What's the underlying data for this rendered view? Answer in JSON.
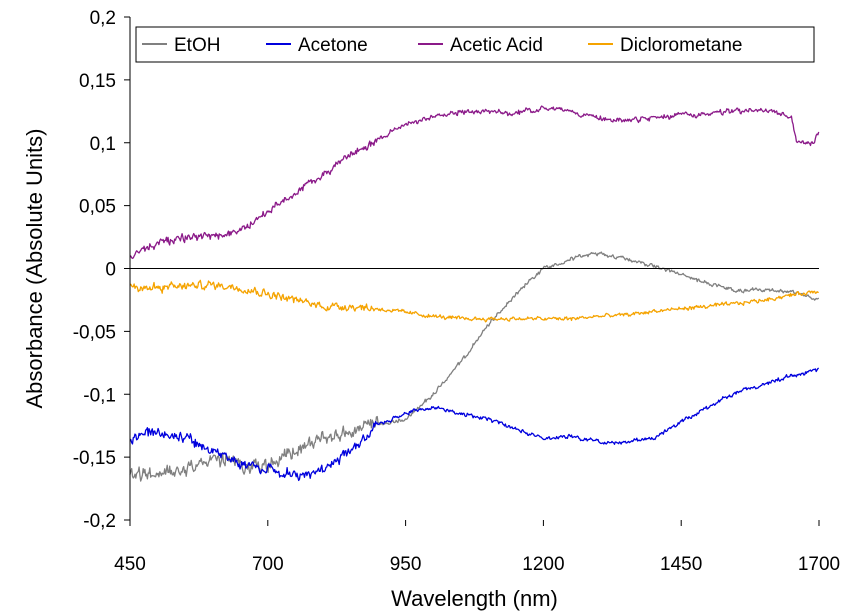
{
  "chart_data": {
    "type": "line",
    "xlabel": "Wavelength (nm)",
    "ylabel": "Absorbance (Absolute Units)",
    "xlim": [
      450,
      1700
    ],
    "ylim": [
      -0.2,
      0.2
    ],
    "x_ticks": [
      450,
      700,
      950,
      1200,
      1450,
      1700
    ],
    "x_tick_labels": [
      "450",
      "700",
      "950",
      "1200",
      "1450",
      "1700"
    ],
    "y_ticks": [
      -0.2,
      -0.15,
      -0.1,
      -0.05,
      0,
      0.05,
      0.1,
      0.15,
      0.2
    ],
    "y_tick_labels": [
      "-0,2",
      "-0,15",
      "-0,1",
      "-0,05",
      "0",
      "0,05",
      "0,1",
      "0,15",
      "0,2"
    ],
    "grid": false,
    "legend_position": "top",
    "series": [
      {
        "name": "EtOH",
        "color": "#808080",
        "noise_below_900": 0.007,
        "noise_above_900": 0.002,
        "points": [
          [
            450,
            -0.165
          ],
          [
            500,
            -0.163
          ],
          [
            550,
            -0.158
          ],
          [
            600,
            -0.152
          ],
          [
            650,
            -0.155
          ],
          [
            700,
            -0.158
          ],
          [
            750,
            -0.145
          ],
          [
            800,
            -0.135
          ],
          [
            850,
            -0.13
          ],
          [
            900,
            -0.125
          ],
          [
            950,
            -0.12
          ],
          [
            1000,
            -0.1
          ],
          [
            1050,
            -0.075
          ],
          [
            1100,
            -0.045
          ],
          [
            1150,
            -0.02
          ],
          [
            1200,
            0.0
          ],
          [
            1250,
            0.008
          ],
          [
            1300,
            0.012
          ],
          [
            1350,
            0.008
          ],
          [
            1400,
            0.002
          ],
          [
            1450,
            -0.005
          ],
          [
            1500,
            -0.012
          ],
          [
            1550,
            -0.018
          ],
          [
            1600,
            -0.017
          ],
          [
            1650,
            -0.018
          ],
          [
            1700,
            -0.025
          ]
        ]
      },
      {
        "name": "Acetone",
        "color": "#0000dd",
        "noise_below_900": 0.005,
        "noise_above_900": 0.002,
        "points": [
          [
            450,
            -0.135
          ],
          [
            500,
            -0.13
          ],
          [
            550,
            -0.135
          ],
          [
            600,
            -0.145
          ],
          [
            650,
            -0.155
          ],
          [
            700,
            -0.16
          ],
          [
            750,
            -0.165
          ],
          [
            800,
            -0.16
          ],
          [
            850,
            -0.145
          ],
          [
            900,
            -0.125
          ],
          [
            950,
            -0.115
          ],
          [
            1000,
            -0.11
          ],
          [
            1050,
            -0.115
          ],
          [
            1100,
            -0.12
          ],
          [
            1150,
            -0.128
          ],
          [
            1200,
            -0.135
          ],
          [
            1250,
            -0.133
          ],
          [
            1300,
            -0.138
          ],
          [
            1350,
            -0.138
          ],
          [
            1400,
            -0.135
          ],
          [
            1450,
            -0.122
          ],
          [
            1500,
            -0.11
          ],
          [
            1550,
            -0.098
          ],
          [
            1600,
            -0.092
          ],
          [
            1650,
            -0.085
          ],
          [
            1700,
            -0.08
          ]
        ]
      },
      {
        "name": "Acetic Acid",
        "color": "#8b1a89",
        "noise_below_900": 0.004,
        "noise_above_900": 0.0025,
        "points": [
          [
            450,
            0.01
          ],
          [
            500,
            0.02
          ],
          [
            550,
            0.025
          ],
          [
            600,
            0.025
          ],
          [
            650,
            0.03
          ],
          [
            700,
            0.045
          ],
          [
            750,
            0.06
          ],
          [
            800,
            0.075
          ],
          [
            850,
            0.09
          ],
          [
            900,
            0.103
          ],
          [
            950,
            0.115
          ],
          [
            1000,
            0.12
          ],
          [
            1050,
            0.125
          ],
          [
            1100,
            0.125
          ],
          [
            1150,
            0.123
          ],
          [
            1200,
            0.128
          ],
          [
            1250,
            0.125
          ],
          [
            1300,
            0.12
          ],
          [
            1350,
            0.117
          ],
          [
            1400,
            0.12
          ],
          [
            1450,
            0.122
          ],
          [
            1500,
            0.123
          ],
          [
            1550,
            0.125
          ],
          [
            1600,
            0.126
          ],
          [
            1650,
            0.12
          ],
          [
            1660,
            0.1
          ],
          [
            1690,
            0.1
          ],
          [
            1700,
            0.11
          ]
        ]
      },
      {
        "name": "Diclorometane",
        "color": "#f5a300",
        "noise_below_900": 0.004,
        "noise_above_900": 0.002,
        "points": [
          [
            450,
            -0.015
          ],
          [
            500,
            -0.015
          ],
          [
            550,
            -0.014
          ],
          [
            600,
            -0.013
          ],
          [
            650,
            -0.015
          ],
          [
            700,
            -0.02
          ],
          [
            750,
            -0.025
          ],
          [
            800,
            -0.03
          ],
          [
            850,
            -0.03
          ],
          [
            900,
            -0.032
          ],
          [
            950,
            -0.035
          ],
          [
            1000,
            -0.038
          ],
          [
            1050,
            -0.04
          ],
          [
            1100,
            -0.04
          ],
          [
            1150,
            -0.04
          ],
          [
            1200,
            -0.04
          ],
          [
            1250,
            -0.04
          ],
          [
            1300,
            -0.038
          ],
          [
            1350,
            -0.037
          ],
          [
            1400,
            -0.034
          ],
          [
            1450,
            -0.032
          ],
          [
            1500,
            -0.03
          ],
          [
            1550,
            -0.028
          ],
          [
            1600,
            -0.025
          ],
          [
            1650,
            -0.021
          ],
          [
            1700,
            -0.018
          ]
        ]
      }
    ]
  }
}
